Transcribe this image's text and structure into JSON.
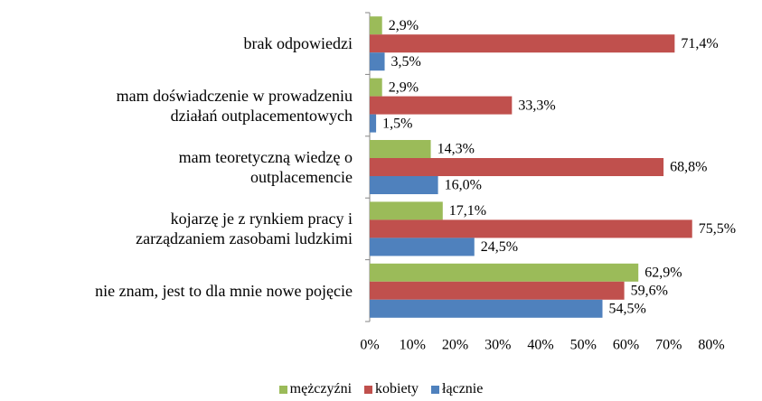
{
  "chart_data": {
    "type": "bar",
    "orientation": "horizontal",
    "categories": [
      "brak odpowiedzi",
      "mam doświadczenie w prowadzeniu\ndziałań outplacementowych",
      "mam teoretyczną wiedzę o\noutplacemencie",
      "kojarzę je z rynkiem pracy i\nzarządzaniem zasobami ludzkimi",
      "nie znam, jest to dla mnie nowe pojęcie"
    ],
    "series": [
      {
        "name": "mężczyźni",
        "color": "#9bbb59",
        "values": [
          2.9,
          2.9,
          14.3,
          17.1,
          62.9
        ],
        "value_labels": [
          "2,9%",
          "2,9%",
          "14,3%",
          "17,1%",
          "62,9%"
        ]
      },
      {
        "name": "kobiety",
        "color": "#c0504d",
        "values": [
          71.4,
          33.3,
          68.8,
          75.5,
          59.6
        ],
        "value_labels": [
          "71,4%",
          "33,3%",
          "68,8%",
          "75,5%",
          "59,6%"
        ]
      },
      {
        "name": "łącznie",
        "color": "#4f81bd",
        "values": [
          3.5,
          1.5,
          16.0,
          24.5,
          54.5
        ],
        "value_labels": [
          "3,5%",
          "1,5%",
          "16,0%",
          "24,5%",
          "54,5%"
        ]
      }
    ],
    "xlim": [
      0,
      80
    ],
    "xticks": [
      {
        "value": 0,
        "label": "0%"
      },
      {
        "value": 10,
        "label": "10%"
      },
      {
        "value": 20,
        "label": "20%"
      },
      {
        "value": 30,
        "label": "30%"
      },
      {
        "value": 40,
        "label": "40%"
      },
      {
        "value": 50,
        "label": "50%"
      },
      {
        "value": 60,
        "label": "60%"
      },
      {
        "value": 70,
        "label": "70%"
      },
      {
        "value": 80,
        "label": "80%"
      }
    ],
    "grid": false,
    "legend": "bottom"
  }
}
